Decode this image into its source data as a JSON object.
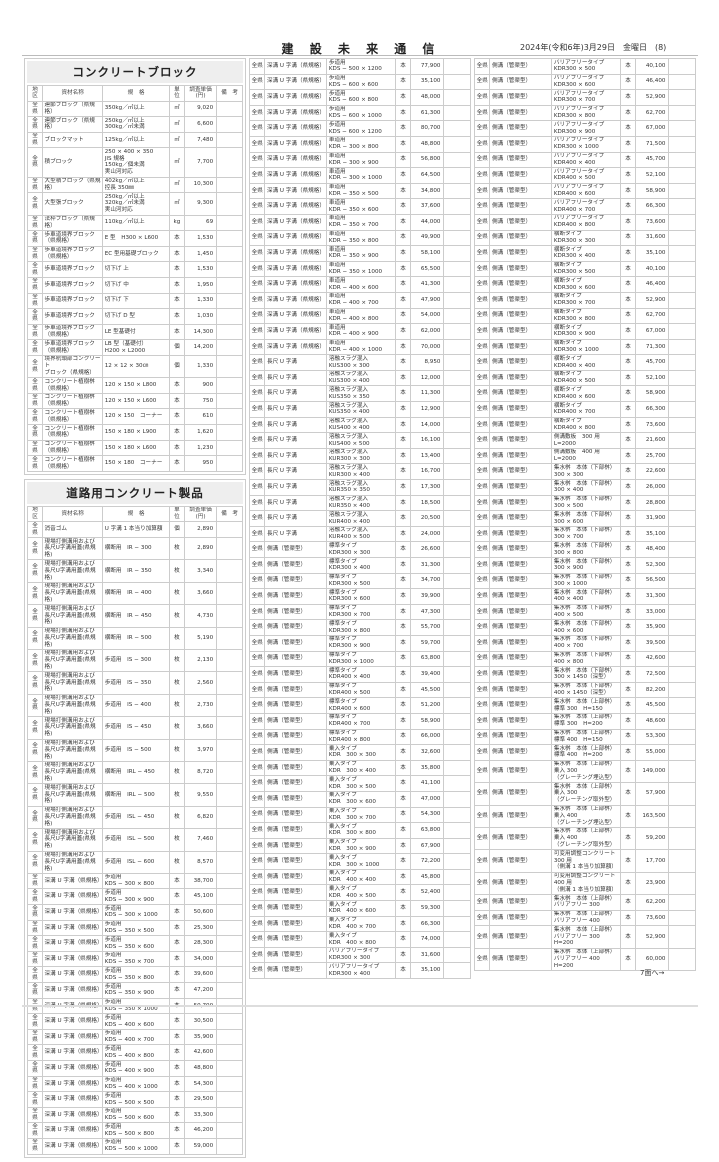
{
  "header": {
    "masthead": "建 設 未 来 通 信",
    "date": "2024年(令和6年)3月29日　金曜日　(8)"
  },
  "columns": [
    "地区",
    "資材名称",
    "規　格",
    "単位",
    "調査単価\n(円)",
    "備　考"
  ],
  "section1": {
    "title": "コンクリートブロック",
    "rows": [
      [
        "全県",
        "連節ブロック（県規格）",
        "350kg／㎡以上",
        "㎡",
        "9,020"
      ],
      [
        "全県",
        "連節ブロック（県規格）",
        "250kg／㎡以上\n300kg／㎡未満",
        "㎡",
        "6,600"
      ],
      [
        "全県",
        "ブロックマット",
        "125kg／㎡以上",
        "㎡",
        "7,480"
      ],
      [
        "全県",
        "積ブロック",
        "250 × 400 × 350\nJIS 規格\n150kg／個未満\n実山河対応",
        "㎡",
        "7,700"
      ],
      [
        "全県",
        "大型積ブロック（県規格）",
        "402kg／㎡以上\n控長 350㎜",
        "㎡",
        "10,300"
      ],
      [
        "全県",
        "大型張ブロック",
        "250kg／㎡以上\n320kg／㎡未満\n実山河対応",
        "㎡",
        "9,300"
      ],
      [
        "全県",
        "法枠ブロック（県規格）",
        "110kg／㎡以上",
        "kg",
        "69"
      ],
      [
        "全県",
        "歩車道境界ブロック\n（県規格）",
        "E 型　H300 × L600",
        "本",
        "1,530"
      ],
      [
        "全県",
        "歩車道境界ブロック\n（県規格）",
        "EC 型用基礎ブロック",
        "本",
        "1,450"
      ],
      [
        "全県",
        "歩車道境界ブロック",
        "切下げ 上",
        "本",
        "1,530"
      ],
      [
        "全県",
        "歩車道境界ブロック",
        "切下げ 中",
        "本",
        "1,950"
      ],
      [
        "全県",
        "歩車道境界ブロック",
        "切下げ 下",
        "本",
        "1,330"
      ],
      [
        "全県",
        "歩車道境界ブロック",
        "切下げ D 型",
        "本",
        "1,030"
      ],
      [
        "全県",
        "歩車道境界ブロック\n（県規格）",
        "LE 型基礎付",
        "本",
        "14,300"
      ],
      [
        "全県",
        "歩車道境界ブロック\n（県規格）",
        "LB 型（基礎付）\nH200 × L2000",
        "個",
        "14,200"
      ],
      [
        "全県",
        "境界杭頭部コンクリート\nブロック（県規格）",
        "12 × 12 × 30㎝",
        "個",
        "1,330"
      ],
      [
        "全県",
        "コンクリート植樹桝\n（県規格）",
        "120 × 150 × L800",
        "本",
        "900"
      ],
      [
        "全県",
        "コンクリート植樹桝\n（県規格）",
        "120 × 150 × L600",
        "本",
        "750"
      ],
      [
        "全県",
        "コンクリート植樹桝\n（県規格）",
        "120 × 150　コーナー",
        "本",
        "610"
      ],
      [
        "全県",
        "コンクリート植樹桝\n（県規格）",
        "150 × 180 × L900",
        "本",
        "1,620"
      ],
      [
        "全県",
        "コンクリート植樹桝\n（県規格）",
        "150 × 180 × L600",
        "本",
        "1,230"
      ],
      [
        "全県",
        "コンクリート植樹桝\n（県規格）",
        "150 × 180　コーナー",
        "本",
        "950"
      ]
    ]
  },
  "section2": {
    "title": "道路用コンクリート製品",
    "rows": [
      [
        "全県",
        "消音ゴム",
        "U 字溝 1 本当り加算額",
        "個",
        "2,890"
      ],
      [
        "全県",
        "現場打側溝用および\n長尺U字溝用蓋(県規格)",
        "横断用　IR − 300",
        "枚",
        "2,890"
      ],
      [
        "全県",
        "現場打側溝用および\n長尺U字溝用蓋(県規格)",
        "横断用　IR − 350",
        "枚",
        "3,340"
      ],
      [
        "全県",
        "現場打側溝用および\n長尺U字溝用蓋(県規格)",
        "横断用　IR − 400",
        "枚",
        "3,660"
      ],
      [
        "全県",
        "現場打側溝用および\n長尺U字溝用蓋(県規格)",
        "横断用　IR − 450",
        "枚",
        "4,730"
      ],
      [
        "全県",
        "現場打側溝用および\n長尺U字溝用蓋(県規格)",
        "横断用　IR − 500",
        "枚",
        "5,190"
      ],
      [
        "全県",
        "現場打側溝用および\n長尺U字溝用蓋(県規格)",
        "歩道用　IS − 300",
        "枚",
        "2,130"
      ],
      [
        "全県",
        "現場打側溝用および\n長尺U字溝用蓋(県規格)",
        "歩道用　IS − 350",
        "枚",
        "2,560"
      ],
      [
        "全県",
        "現場打側溝用および\n長尺U字溝用蓋(県規格)",
        "歩道用　IS − 400",
        "枚",
        "2,730"
      ],
      [
        "全県",
        "現場打側溝用および\n長尺U字溝用蓋(県規格)",
        "歩道用　IS − 450",
        "枚",
        "3,660"
      ],
      [
        "全県",
        "現場打側溝用および\n長尺U字溝用蓋(県規格)",
        "歩道用　IS − 500",
        "枚",
        "3,970"
      ],
      [
        "全県",
        "現場打側溝用および\n長尺U字溝用蓋(県規格)",
        "横断用　IRL − 450",
        "枚",
        "8,720"
      ],
      [
        "全県",
        "現場打側溝用および\n長尺U字溝用蓋(県規格)",
        "横断用　IRL − 500",
        "枚",
        "9,550"
      ],
      [
        "全県",
        "現場打側溝用および\n長尺U字溝用蓋(県規格)",
        "歩道用　ISL − 450",
        "枚",
        "6,820"
      ],
      [
        "全県",
        "現場打側溝用および\n長尺U字溝用蓋(県規格)",
        "歩道用　ISL − 500",
        "枚",
        "7,460"
      ],
      [
        "全県",
        "現場打側溝用および\n長尺U字溝用蓋(県規格)",
        "歩道用　ISL − 600",
        "枚",
        "8,570"
      ],
      [
        "全県",
        "深溝 U 字溝（県規格）",
        "歩道用\nKDS − 300 × 800",
        "本",
        "38,700"
      ],
      [
        "全県",
        "深溝 U 字溝（県規格）",
        "歩道用\nKDS − 300 × 900",
        "本",
        "45,100"
      ],
      [
        "全県",
        "深溝 U 字溝（県規格）",
        "歩道用\nKDS − 300 × 1000",
        "本",
        "50,600"
      ],
      [
        "全県",
        "深溝 U 字溝（県規格）",
        "歩道用\nKDS − 350 × 500",
        "本",
        "25,300"
      ],
      [
        "全県",
        "深溝 U 字溝（県規格）",
        "歩道用\nKDS − 350 × 600",
        "本",
        "28,300"
      ],
      [
        "全県",
        "深溝 U 字溝（県規格）",
        "歩道用\nKDS − 350 × 700",
        "本",
        "34,000"
      ],
      [
        "全県",
        "深溝 U 字溝（県規格）",
        "歩道用\nKDS − 350 × 800",
        "本",
        "39,600"
      ],
      [
        "全県",
        "深溝 U 字溝（県規格）",
        "歩道用\nKDS − 350 × 900",
        "本",
        "47,200"
      ],
      [
        "全県",
        "深溝 U 字溝（県規格）",
        "歩道用\nKDS − 350 × 1000",
        "本",
        "50,700"
      ],
      [
        "全県",
        "深溝 U 字溝（県規格）",
        "歩道用\nKDS − 400 × 600",
        "本",
        "30,500"
      ],
      [
        "全県",
        "深溝 U 字溝（県規格）",
        "歩道用\nKDS − 400 × 700",
        "本",
        "35,900"
      ],
      [
        "全県",
        "深溝 U 字溝（県規格）",
        "歩道用\nKDS − 400 × 800",
        "本",
        "42,600"
      ],
      [
        "全県",
        "深溝 U 字溝（県規格）",
        "歩道用\nKDS − 400 × 900",
        "本",
        "48,800"
      ],
      [
        "全県",
        "深溝 U 字溝（県規格）",
        "歩道用\nKDS − 400 × 1000",
        "本",
        "54,300"
      ],
      [
        "全県",
        "深溝 U 字溝（県規格）",
        "歩道用\nKDS − 500 × 500",
        "本",
        "29,500"
      ],
      [
        "全県",
        "深溝 U 字溝（県規格）",
        "歩道用\nKDS − 500 × 600",
        "本",
        "33,300"
      ],
      [
        "全県",
        "深溝 U 字溝（県規格）",
        "歩道用\nKDS − 500 × 800",
        "本",
        "46,200"
      ],
      [
        "全県",
        "深溝 U 字溝（県規格）",
        "歩道用\nKDS − 500 × 1000",
        "本",
        "59,000"
      ]
    ]
  },
  "column2": [
    [
      "全県",
      "深溝 U 字溝（県規格）",
      "歩道用\nKDS − 500 × 1200",
      "本",
      "77,900"
    ],
    [
      "全県",
      "深溝 U 字溝（県規格）",
      "歩道用\nKDS − 600 × 600",
      "本",
      "35,100"
    ],
    [
      "全県",
      "深溝 U 字溝（県規格）",
      "歩道用\nKDS − 600 × 800",
      "本",
      "48,000"
    ],
    [
      "全県",
      "深溝 U 字溝（県規格）",
      "歩道用\nKDS − 600 × 1000",
      "本",
      "61,300"
    ],
    [
      "全県",
      "深溝 U 字溝（県規格）",
      "歩道用\nKDS − 600 × 1200",
      "本",
      "80,700"
    ],
    [
      "全県",
      "深溝 U 字溝（県規格）",
      "車道用\nKDR − 300 × 800",
      "本",
      "48,800"
    ],
    [
      "全県",
      "深溝 U 字溝（県規格）",
      "車道用\nKDR − 300 × 900",
      "本",
      "56,800"
    ],
    [
      "全県",
      "深溝 U 字溝（県規格）",
      "車道用\nKDR − 300 × 1000",
      "本",
      "64,500"
    ],
    [
      "全県",
      "深溝 U 字溝（県規格）",
      "車道用\nKDR − 350 × 500",
      "本",
      "34,800"
    ],
    [
      "全県",
      "深溝 U 字溝（県規格）",
      "車道用\nKDR − 350 × 600",
      "本",
      "37,600"
    ],
    [
      "全県",
      "深溝 U 字溝（県規格）",
      "車道用\nKDR − 350 × 700",
      "本",
      "44,000"
    ],
    [
      "全県",
      "深溝 U 字溝（県規格）",
      "車道用\nKDR − 350 × 800",
      "本",
      "49,900"
    ],
    [
      "全県",
      "深溝 U 字溝（県規格）",
      "車道用\nKDR − 350 × 900",
      "本",
      "58,100"
    ],
    [
      "全県",
      "深溝 U 字溝（県規格）",
      "車道用\nKDR − 350 × 1000",
      "本",
      "65,500"
    ],
    [
      "全県",
      "深溝 U 字溝（県規格）",
      "車道用\nKDR − 400 × 600",
      "本",
      "41,300"
    ],
    [
      "全県",
      "深溝 U 字溝（県規格）",
      "車道用\nKDR − 400 × 700",
      "本",
      "47,900"
    ],
    [
      "全県",
      "深溝 U 字溝（県規格）",
      "車道用\nKDR − 400 × 800",
      "本",
      "54,000"
    ],
    [
      "全県",
      "深溝 U 字溝（県規格）",
      "車道用\nKDR − 400 × 900",
      "本",
      "62,000"
    ],
    [
      "全県",
      "深溝 U 字溝（県規格）",
      "車道用\nKDR − 400 × 1000",
      "本",
      "70,000"
    ],
    [
      "全県",
      "長尺 U 字溝",
      "溶融スラグ混入\nKUS300 × 300",
      "本",
      "8,950"
    ],
    [
      "全県",
      "長尺 U 字溝",
      "溶融スラグ混入\nKUS300 × 400",
      "本",
      "12,000"
    ],
    [
      "全県",
      "長尺 U 字溝",
      "溶融スラグ混入\nKUS350 × 350",
      "本",
      "11,300"
    ],
    [
      "全県",
      "長尺 U 字溝",
      "溶融スラグ混入\nKUS350 × 400",
      "本",
      "12,900"
    ],
    [
      "全県",
      "長尺 U 字溝",
      "溶融スラグ混入\nKUS400 × 400",
      "本",
      "14,000"
    ],
    [
      "全県",
      "長尺 U 字溝",
      "溶融スラグ混入\nKUS400 × 500",
      "本",
      "16,100"
    ],
    [
      "全県",
      "長尺 U 字溝",
      "溶融スラグ混入\nKUR300 × 300",
      "本",
      "13,400"
    ],
    [
      "全県",
      "長尺 U 字溝",
      "溶融スラグ混入\nKUR300 × 400",
      "本",
      "16,700"
    ],
    [
      "全県",
      "長尺 U 字溝",
      "溶融スラグ混入\nKUR350 × 350",
      "本",
      "17,300"
    ],
    [
      "全県",
      "長尺 U 字溝",
      "溶融スラグ混入\nKUR350 × 400",
      "本",
      "18,500"
    ],
    [
      "全県",
      "長尺 U 字溝",
      "溶融スラグ混入\nKUR400 × 400",
      "本",
      "20,500"
    ],
    [
      "全県",
      "長尺 U 字溝",
      "溶融スラグ混入\nKUR400 × 500",
      "本",
      "24,000"
    ],
    [
      "全県",
      "側溝（管渠型）",
      "標準タイプ\nKDR300 × 300",
      "本",
      "26,600"
    ],
    [
      "全県",
      "側溝（管渠型）",
      "標準タイプ\nKDR300 × 400",
      "本",
      "31,300"
    ],
    [
      "全県",
      "側溝（管渠型）",
      "標準タイプ\nKDR300 × 500",
      "本",
      "34,700"
    ],
    [
      "全県",
      "側溝（管渠型）",
      "標準タイプ\nKDR300 × 600",
      "本",
      "39,900"
    ],
    [
      "全県",
      "側溝（管渠型）",
      "標準タイプ\nKDR300 × 700",
      "本",
      "47,300"
    ],
    [
      "全県",
      "側溝（管渠型）",
      "標準タイプ\nKDR300 × 800",
      "本",
      "55,700"
    ],
    [
      "全県",
      "側溝（管渠型）",
      "標準タイプ\nKDR300 × 900",
      "本",
      "59,700"
    ],
    [
      "全県",
      "側溝（管渠型）",
      "標準タイプ\nKDR300 × 1000",
      "本",
      "63,800"
    ],
    [
      "全県",
      "側溝（管渠型）",
      "標準タイプ\nKDR400 × 400",
      "本",
      "39,400"
    ],
    [
      "全県",
      "側溝（管渠型）",
      "標準タイプ\nKDR400 × 500",
      "本",
      "45,500"
    ],
    [
      "全県",
      "側溝（管渠型）",
      "標準タイプ\nKDR400 × 600",
      "本",
      "51,200"
    ],
    [
      "全県",
      "側溝（管渠型）",
      "標準タイプ\nKDR400 × 700",
      "本",
      "58,900"
    ],
    [
      "全県",
      "側溝（管渠型）",
      "標準タイプ\nKDR400 × 800",
      "本",
      "66,000"
    ],
    [
      "全県",
      "側溝（管渠型）",
      "乗入タイプ\nKDR　300 × 300",
      "本",
      "32,600"
    ],
    [
      "全県",
      "側溝（管渠型）",
      "乗入タイプ\nKDR　300 × 400",
      "本",
      "35,800"
    ],
    [
      "全県",
      "側溝（管渠型）",
      "乗入タイプ\nKDR　300 × 500",
      "本",
      "41,100"
    ],
    [
      "全県",
      "側溝（管渠型）",
      "乗入タイプ\nKDR　300 × 600",
      "本",
      "47,000"
    ],
    [
      "全県",
      "側溝（管渠型）",
      "乗入タイプ\nKDR　300 × 700",
      "本",
      "54,300"
    ],
    [
      "全県",
      "側溝（管渠型）",
      "乗入タイプ\nKDR　300 × 800",
      "本",
      "63,800"
    ],
    [
      "全県",
      "側溝（管渠型）",
      "乗入タイプ\nKDR　300 × 900",
      "本",
      "67,900"
    ],
    [
      "全県",
      "側溝（管渠型）",
      "乗入タイプ\nKDR　300 × 1000",
      "本",
      "72,200"
    ],
    [
      "全県",
      "側溝（管渠型）",
      "乗入タイプ\nKDR　400 × 400",
      "本",
      "45,800"
    ],
    [
      "全県",
      "側溝（管渠型）",
      "乗入タイプ\nKDR　400 × 500",
      "本",
      "52,400"
    ],
    [
      "全県",
      "側溝（管渠型）",
      "乗入タイプ\nKDR　400 × 600",
      "本",
      "59,300"
    ],
    [
      "全県",
      "側溝（管渠型）",
      "乗入タイプ\nKDR　400 × 700",
      "本",
      "66,300"
    ],
    [
      "全県",
      "側溝（管渠型）",
      "乗入タイプ\nKDR　400 × 800",
      "本",
      "74,000"
    ],
    [
      "全県",
      "側溝（管渠型）",
      "バリアフリータイプ\nKDR300 × 300",
      "本",
      "31,600"
    ],
    [
      "全県",
      "側溝（管渠型）",
      "バリアフリータイプ\nKDR300 × 400",
      "本",
      "35,100"
    ]
  ],
  "column3": [
    [
      "全県",
      "側溝（管渠型）",
      "バリアフリータイプ\nKDR300 × 500",
      "本",
      "40,100"
    ],
    [
      "全県",
      "側溝（管渠型）",
      "バリアフリータイプ\nKDR300 × 600",
      "本",
      "46,400"
    ],
    [
      "全県",
      "側溝（管渠型）",
      "バリアフリータイプ\nKDR300 × 700",
      "本",
      "52,900"
    ],
    [
      "全県",
      "側溝（管渠型）",
      "バリアフリータイプ\nKDR300 × 800",
      "本",
      "62,700"
    ],
    [
      "全県",
      "側溝（管渠型）",
      "バリアフリータイプ\nKDR300 × 900",
      "本",
      "67,000"
    ],
    [
      "全県",
      "側溝（管渠型）",
      "バリアフリータイプ\nKDR300 × 1000",
      "本",
      "71,500"
    ],
    [
      "全県",
      "側溝（管渠型）",
      "バリアフリータイプ\nKDR400 × 400",
      "本",
      "45,700"
    ],
    [
      "全県",
      "側溝（管渠型）",
      "バリアフリータイプ\nKDR400 × 500",
      "本",
      "52,100"
    ],
    [
      "全県",
      "側溝（管渠型）",
      "バリアフリータイプ\nKDR400 × 600",
      "本",
      "58,900"
    ],
    [
      "全県",
      "側溝（管渠型）",
      "バリアフリータイプ\nKDR400 × 700",
      "本",
      "66,300"
    ],
    [
      "全県",
      "側溝（管渠型）",
      "バリアフリータイプ\nKDR400 × 800",
      "本",
      "73,600"
    ],
    [
      "全県",
      "側溝（管渠型）",
      "横断タイプ\nKDR300 × 300",
      "本",
      "31,600"
    ],
    [
      "全県",
      "側溝（管渠型）",
      "横断タイプ\nKDR300 × 400",
      "本",
      "35,100"
    ],
    [
      "全県",
      "側溝（管渠型）",
      "横断タイプ\nKDR300 × 500",
      "本",
      "40,100"
    ],
    [
      "全県",
      "側溝（管渠型）",
      "横断タイプ\nKDR300 × 600",
      "本",
      "46,400"
    ],
    [
      "全県",
      "側溝（管渠型）",
      "横断タイプ\nKDR300 × 700",
      "本",
      "52,900"
    ],
    [
      "全県",
      "側溝（管渠型）",
      "横断タイプ\nKDR300 × 800",
      "本",
      "62,700"
    ],
    [
      "全県",
      "側溝（管渠型）",
      "横断タイプ\nKDR300 × 900",
      "本",
      "67,000"
    ],
    [
      "全県",
      "側溝（管渠型）",
      "横断タイプ\nKDR300 × 1000",
      "本",
      "71,300"
    ],
    [
      "全県",
      "側溝（管渠型）",
      "横断タイプ\nKDR400 × 400",
      "本",
      "45,700"
    ],
    [
      "全県",
      "側溝（管渠型）",
      "横断タイプ\nKDR400 × 500",
      "本",
      "52,100"
    ],
    [
      "全県",
      "側溝（管渠型）",
      "横断タイプ\nKDR400 × 600",
      "本",
      "58,900"
    ],
    [
      "全県",
      "側溝（管渠型）",
      "横断タイプ\nKDR400 × 700",
      "本",
      "66,300"
    ],
    [
      "全県",
      "側溝（管渠型）",
      "横断タイプ\nKDR400 × 800",
      "本",
      "73,600"
    ],
    [
      "全県",
      "側溝（管渠型）",
      "側溝敷板　300 用\nL=2000",
      "本",
      "21,600"
    ],
    [
      "全県",
      "側溝（管渠型）",
      "側溝敷板　400 用\nL=2000",
      "本",
      "25,700"
    ],
    [
      "全県",
      "側溝（管渠型）",
      "集水桝　本体（下部桝）\n300 × 300",
      "本",
      "22,600"
    ],
    [
      "全県",
      "側溝（管渠型）",
      "集水桝　本体（下部桝）\n300 × 400",
      "本",
      "26,000"
    ],
    [
      "全県",
      "側溝（管渠型）",
      "集水桝　本体（下部桝）\n300 × 500",
      "本",
      "28,800"
    ],
    [
      "全県",
      "側溝（管渠型）",
      "集水桝　本体（下部桝）\n300 × 600",
      "本",
      "31,900"
    ],
    [
      "全県",
      "側溝（管渠型）",
      "集水桝　本体（下部桝）\n300 × 700",
      "本",
      "35,100"
    ],
    [
      "全県",
      "側溝（管渠型）",
      "集水桝　本体（下部桝）\n300 × 800",
      "本",
      "48,400"
    ],
    [
      "全県",
      "側溝（管渠型）",
      "集水桝　本体（下部桝）\n300 × 900",
      "本",
      "52,300"
    ],
    [
      "全県",
      "側溝（管渠型）",
      "集水桝　本体（下部桝）\n300 × 1000",
      "本",
      "56,500"
    ],
    [
      "全県",
      "側溝（管渠型）",
      "集水桝　本体（下部桝）\n400 × 400",
      "本",
      "31,300"
    ],
    [
      "全県",
      "側溝（管渠型）",
      "集水桝　本体（下部桝）\n400 × 500",
      "本",
      "33,000"
    ],
    [
      "全県",
      "側溝（管渠型）",
      "集水桝　本体（下部桝）\n400 × 600",
      "本",
      "35,900"
    ],
    [
      "全県",
      "側溝（管渠型）",
      "集水桝　本体（下部桝）\n400 × 700",
      "本",
      "39,500"
    ],
    [
      "全県",
      "側溝（管渠型）",
      "集水桝　本体（下部桝）\n400 × 800",
      "本",
      "42,600"
    ],
    [
      "全県",
      "側溝（管渠型）",
      "集水桝　本体（下部桝）\n300 × 1450（深型）",
      "本",
      "72,500"
    ],
    [
      "全県",
      "側溝（管渠型）",
      "集水桝　本体（下部桝）\n400 × 1450（深型）",
      "本",
      "82,200"
    ],
    [
      "全県",
      "側溝（管渠型）",
      "集水桝　本体（上部桝）\n標準 300　H=150",
      "本",
      "45,500"
    ],
    [
      "全県",
      "側溝（管渠型）",
      "集水桝　本体（上部桝）\n標準 300　H=200",
      "本",
      "48,600"
    ],
    [
      "全県",
      "側溝（管渠型）",
      "集水桝　本体（上部桝）\n標準 400　H=150",
      "本",
      "53,300"
    ],
    [
      "全県",
      "側溝（管渠型）",
      "集水桝　本体（上部桝）\n標準 400　H=200",
      "本",
      "55,000"
    ],
    [
      "全県",
      "側溝（管渠型）",
      "集水桝　本体（上部桝）\n乗入 300\n（グレーチング埋込型）",
      "本",
      "149,000"
    ],
    [
      "全県",
      "側溝（管渠型）",
      "集水桝　本体（上部桝）\n乗入 300\n（グレーチング取外型）",
      "本",
      "57,900"
    ],
    [
      "全県",
      "側溝（管渠型）",
      "集水桝　本体（上部桝）\n乗入 400\n（グレーチング埋込型）",
      "本",
      "163,500"
    ],
    [
      "全県",
      "側溝（管渠型）",
      "集水桝　本体（上部桝）\n乗入 400\n（グレーチング取外型）",
      "本",
      "59,200"
    ],
    [
      "全県",
      "側溝（管渠型）",
      "可変用調整コンクリート\n300 用\n（側溝 1 本当り加算額）",
      "本",
      "17,700"
    ],
    [
      "全県",
      "側溝（管渠型）",
      "可変用調整コンクリート\n400 用\n（側溝 1 本当り加算額）",
      "本",
      "23,900"
    ],
    [
      "全県",
      "側溝（管渠型）",
      "集水桝　本体（上部桝）\nバリアフリー 300",
      "本",
      "62,200"
    ],
    [
      "全県",
      "側溝（管渠型）",
      "集水桝　本体（上部桝）\nバリアフリー 400",
      "本",
      "73,600"
    ],
    [
      "全県",
      "側溝（管渠型）",
      "集水桝　本体（上部桝）\nバリアフリー 300\nH=200",
      "本",
      "52,900"
    ],
    [
      "全県",
      "側溝（管渠型）",
      "集水桝　本体（上部桝）\nバリアフリー 400\nH=200",
      "本",
      "60,000"
    ]
  ],
  "footer": {
    "continued": "7面へ→"
  }
}
